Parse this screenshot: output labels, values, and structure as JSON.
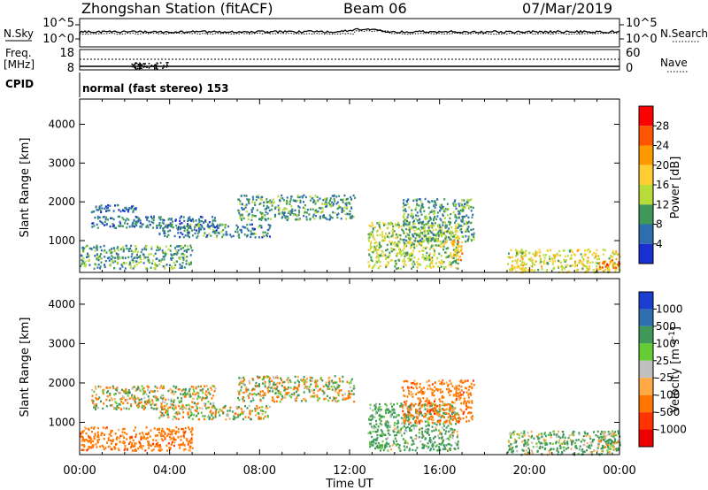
{
  "header": {
    "station": "Zhongshan Station (fitACF)",
    "beam": "Beam 06",
    "date": "07/Mar/2019"
  },
  "top_panel": {
    "left_label": "N.Sky",
    "right_label": "N.Search",
    "left_ticks": [
      "10^5",
      "10^0"
    ],
    "right_ticks": [
      "10^5",
      "10^0"
    ]
  },
  "freq_panel": {
    "left_label_1": "Freq.",
    "left_label_2": "[MHz]",
    "left_ticks": [
      "18",
      "8"
    ],
    "right_label": "Nave",
    "right_ticks": [
      "60",
      "0"
    ]
  },
  "cpid": {
    "label": "CPID",
    "text": "normal (fast stereo) 153"
  },
  "power_panel": {
    "ylabel": "Slant Range [km]",
    "yticks": [
      "4000",
      "3000",
      "2000",
      "1000"
    ],
    "colorbar_label": "Power [dB]",
    "colorbar_ticks": [
      "28",
      "24",
      "20",
      "16",
      "12",
      "8",
      "4"
    ],
    "colors": [
      "#ff0000",
      "#ff5500",
      "#ff9900",
      "#ffcc33",
      "#b8dc3a",
      "#3f9a5a",
      "#2e6eb0",
      "#1a2fcf"
    ]
  },
  "velocity_panel": {
    "ylabel": "Slant Range [km]",
    "yticks": [
      "4000",
      "3000",
      "2000",
      "1000"
    ],
    "colorbar_label": "Velocity [m s^-1]",
    "colorbar_ticks": [
      "1000",
      "500",
      "100",
      "25",
      "-25",
      "-100",
      "-500",
      "-1000"
    ],
    "colors": [
      "#1a3fd0",
      "#2f6fb0",
      "#3f9a5a",
      "#66cc33",
      "#bfbfbf",
      "#ffaa44",
      "#ff7700",
      "#ff3300",
      "#ee0000"
    ]
  },
  "xaxis": {
    "label": "Time UT",
    "ticks": [
      "00:00",
      "04:00",
      "08:00",
      "12:00",
      "16:00",
      "20:00",
      "00:00"
    ]
  },
  "chart_data": [
    {
      "type": "heatmap",
      "title": "Zhongshan Station (fitACF) Beam 06 07/Mar/2019",
      "xlabel": "Time UT",
      "ylabel": "Slant Range [km]",
      "xlim": [
        "00:00",
        "24:00"
      ],
      "ylim": [
        180,
        4650
      ],
      "colorbar": "Power [dB]",
      "clim": [
        0,
        32
      ],
      "regions": [
        {
          "t0": 0.5,
          "t1": 2.5,
          "r0": 1750,
          "r1": 1950,
          "value": 6
        },
        {
          "t0": 0.5,
          "t1": 6.0,
          "r0": 1350,
          "r1": 1650,
          "value": 7
        },
        {
          "t0": 3.5,
          "t1": 8.5,
          "r0": 1100,
          "r1": 1450,
          "value": 8
        },
        {
          "t0": 7.0,
          "t1": 12.2,
          "r0": 1550,
          "r1": 2200,
          "value": 9
        },
        {
          "t0": 0.0,
          "t1": 5.0,
          "r0": 300,
          "r1": 900,
          "value": 10
        },
        {
          "t0": 12.8,
          "t1": 16.8,
          "r0": 300,
          "r1": 1500,
          "value": 14
        },
        {
          "t0": 14.3,
          "t1": 17.5,
          "r0": 1000,
          "r1": 2100,
          "value": 10
        },
        {
          "t0": 16.5,
          "t1": 17.0,
          "r0": 500,
          "r1": 1100,
          "value": 20
        },
        {
          "t0": 19.0,
          "t1": 24.0,
          "r0": 200,
          "r1": 800,
          "value": 16
        },
        {
          "t0": 23.0,
          "t1": 24.0,
          "r0": 300,
          "r1": 550,
          "value": 24
        }
      ]
    },
    {
      "type": "heatmap",
      "title": "",
      "xlabel": "Time UT",
      "ylabel": "Slant Range [km]",
      "xlim": [
        "00:00",
        "24:00"
      ],
      "ylim": [
        180,
        4650
      ],
      "colorbar": "Velocity [m s^-1]",
      "clim": [
        -1000,
        1000
      ],
      "regions": [
        {
          "t0": 0.5,
          "t1": 6.0,
          "r0": 1350,
          "r1": 1950,
          "value": 0
        },
        {
          "t0": 3.5,
          "t1": 8.5,
          "r0": 1100,
          "r1": 1450,
          "value": 0
        },
        {
          "t0": 7.0,
          "t1": 12.2,
          "r0": 1550,
          "r1": 2200,
          "value": 10
        },
        {
          "t0": 0.0,
          "t1": 5.0,
          "r0": 300,
          "r1": 900,
          "value": -300
        },
        {
          "t0": 12.8,
          "t1": 16.8,
          "r0": 300,
          "r1": 1500,
          "value": 200
        },
        {
          "t0": 14.3,
          "t1": 17.5,
          "r0": 1000,
          "r1": 2100,
          "value": -300
        },
        {
          "t0": 19.0,
          "t1": 24.0,
          "r0": 200,
          "r1": 800,
          "value": 150
        },
        {
          "t0": 23.0,
          "t1": 24.0,
          "r0": 300,
          "r1": 800,
          "value": 120
        }
      ]
    }
  ]
}
